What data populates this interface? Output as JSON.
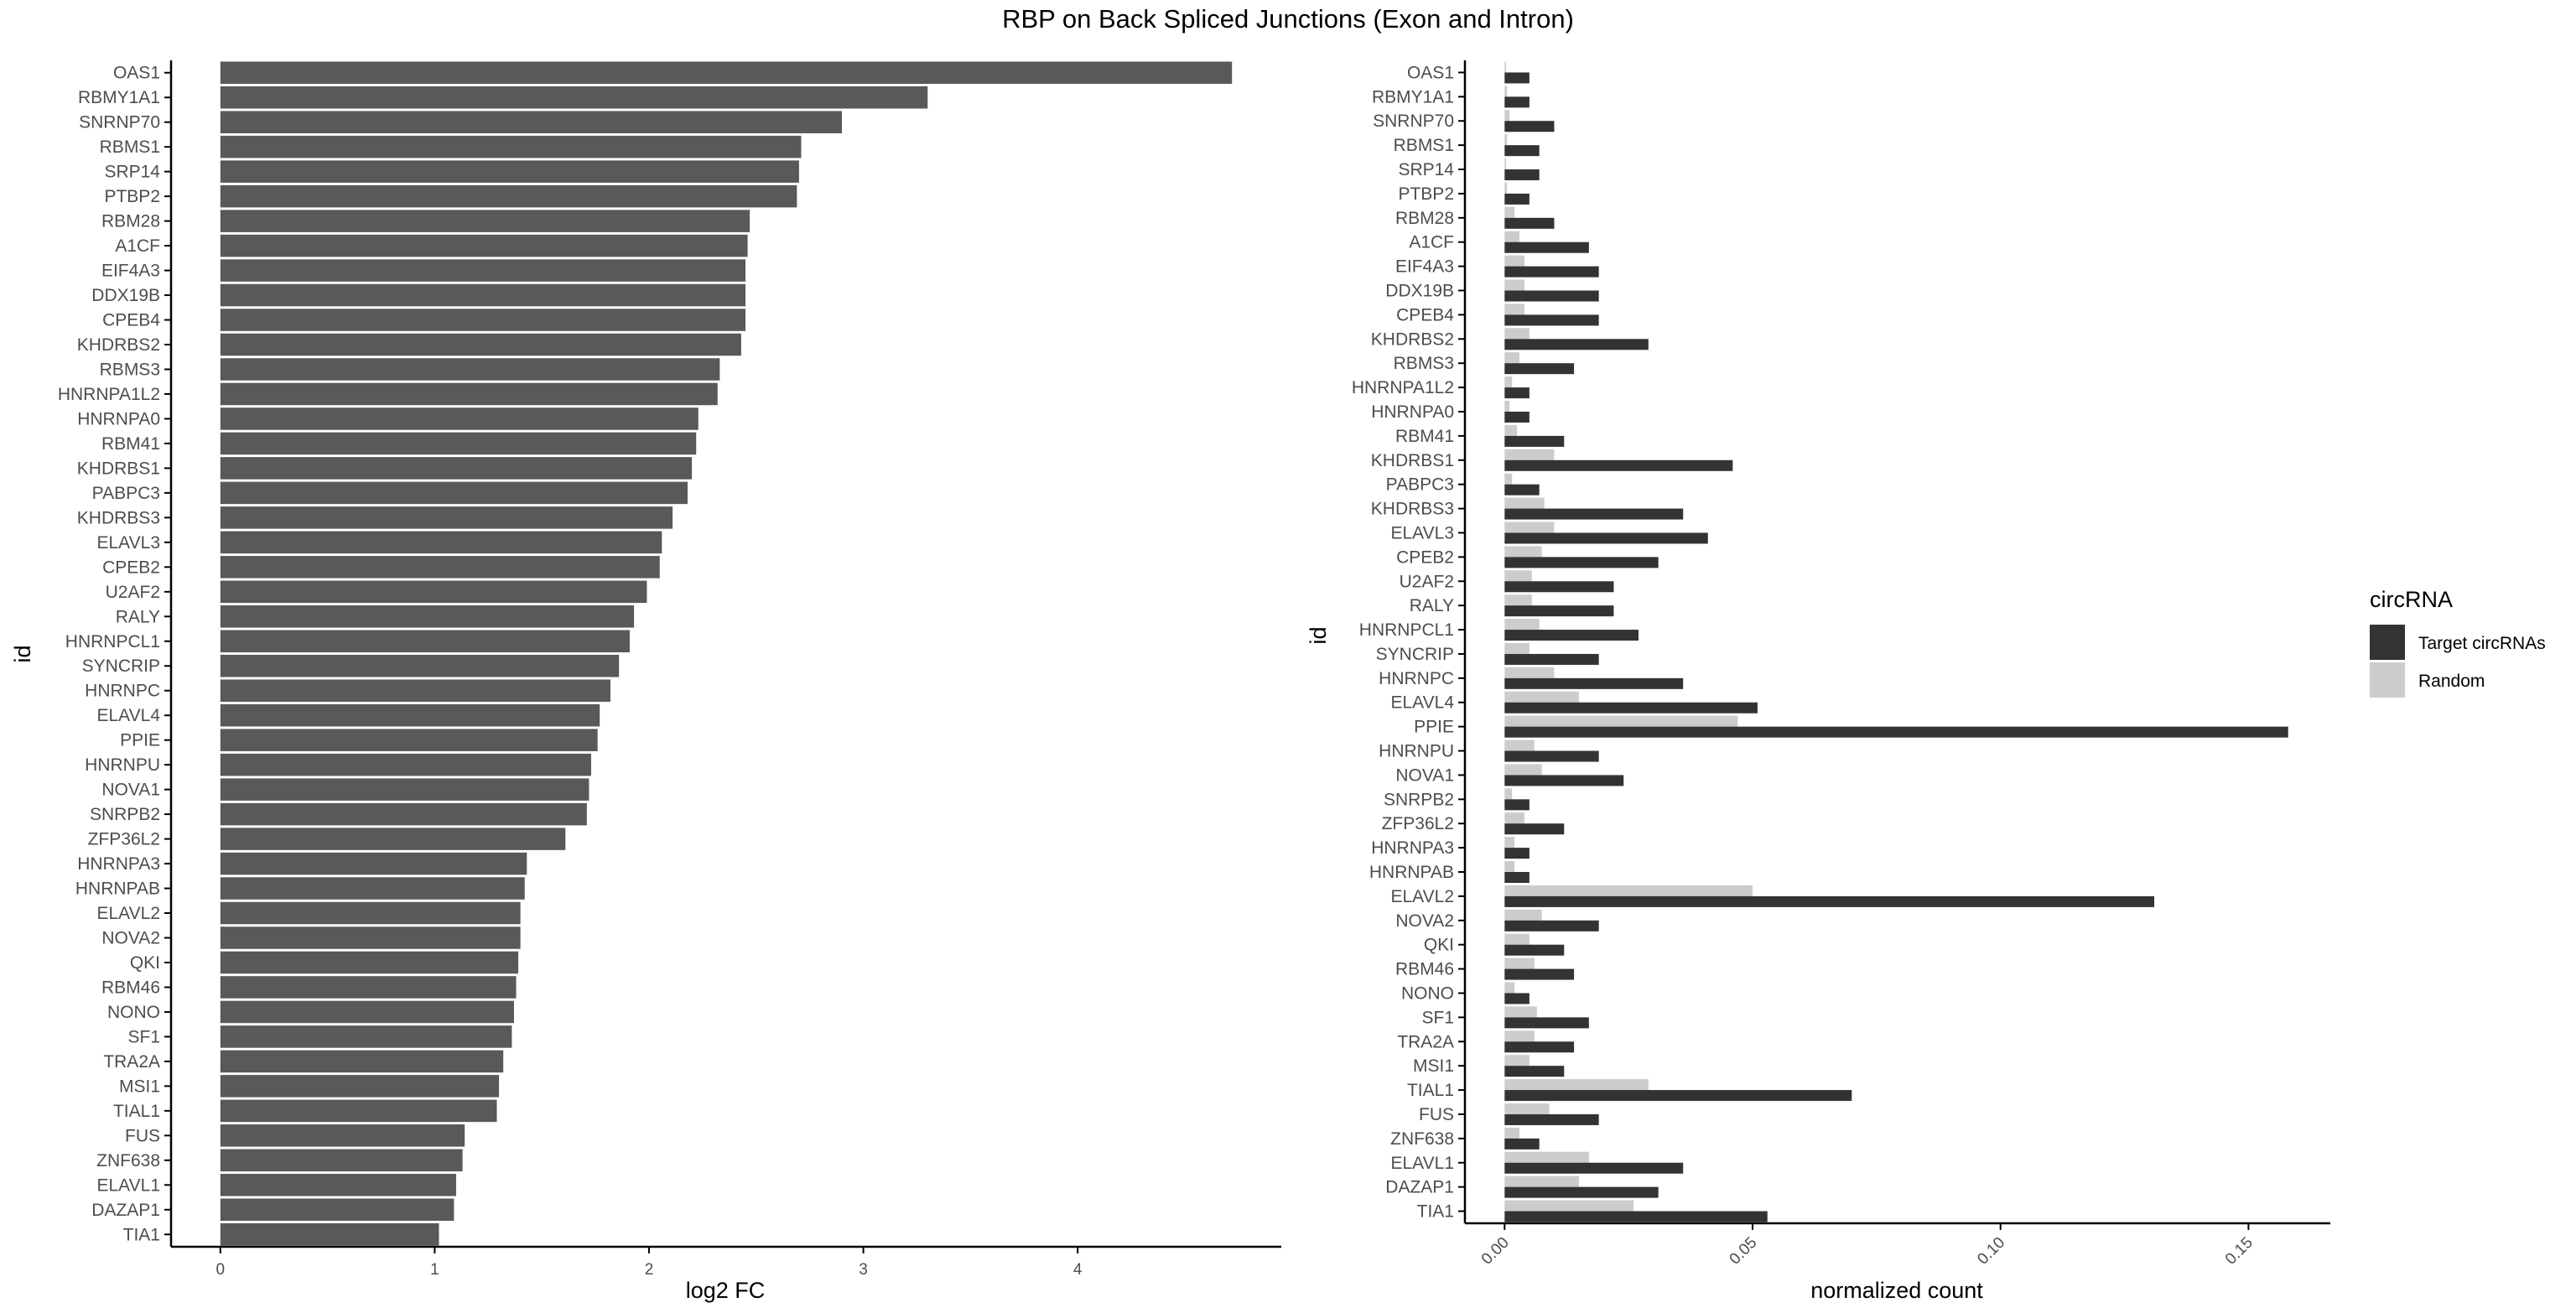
{
  "title": "RBP on Back Spliced Junctions (Exon and Intron)",
  "colors": {
    "bar_left": "#595959",
    "target": "#333333",
    "random": "#cccccc",
    "axis": "#000000",
    "text": "#4d4d4d"
  },
  "chart_data": [
    {
      "type": "bar",
      "orientation": "horizontal",
      "xlabel": "log2 FC",
      "ylabel": "id",
      "xlim": [
        -0.23,
        4.95
      ],
      "xticks": [
        "0",
        "1",
        "2",
        "3",
        "4"
      ],
      "grid": false,
      "categories": [
        "OAS1",
        "RBMY1A1",
        "SNRNP70",
        "RBMS1",
        "SRP14",
        "PTBP2",
        "RBM28",
        "A1CF",
        "EIF4A3",
        "DDX19B",
        "CPEB4",
        "KHDRBS2",
        "RBMS3",
        "HNRNPA1L2",
        "HNRNPA0",
        "RBM41",
        "KHDRBS1",
        "PABPC3",
        "KHDRBS3",
        "ELAVL3",
        "CPEB2",
        "U2AF2",
        "RALY",
        "HNRNPCL1",
        "SYNCRIP",
        "HNRNPC",
        "ELAVL4",
        "PPIE",
        "HNRNPU",
        "NOVA1",
        "SNRPB2",
        "ZFP36L2",
        "HNRNPA3",
        "HNRNPAB",
        "ELAVL2",
        "NOVA2",
        "QKI",
        "RBM46",
        "NONO",
        "SF1",
        "TRA2A",
        "MSI1",
        "TIAL1",
        "FUS",
        "ZNF638",
        "ELAVL1",
        "DAZAP1",
        "TIA1"
      ],
      "values": [
        4.72,
        3.3,
        2.9,
        2.71,
        2.7,
        2.69,
        2.47,
        2.46,
        2.45,
        2.45,
        2.45,
        2.43,
        2.33,
        2.32,
        2.23,
        2.22,
        2.2,
        2.18,
        2.11,
        2.06,
        2.05,
        1.99,
        1.93,
        1.91,
        1.86,
        1.82,
        1.77,
        1.76,
        1.73,
        1.72,
        1.71,
        1.61,
        1.43,
        1.42,
        1.4,
        1.4,
        1.39,
        1.38,
        1.37,
        1.36,
        1.32,
        1.3,
        1.29,
        1.14,
        1.13,
        1.1,
        1.09,
        1.02
      ]
    },
    {
      "type": "bar",
      "orientation": "horizontal",
      "xlabel": "normalized count",
      "ylabel": "id",
      "xlim": [
        -0.008,
        0.1665
      ],
      "xticks": [
        "0.00",
        "0.05",
        "0.10",
        "0.15"
      ],
      "grid": false,
      "legend": {
        "title": "circRNA",
        "position": "right"
      },
      "categories": [
        "OAS1",
        "RBMY1A1",
        "SNRNP70",
        "RBMS1",
        "SRP14",
        "PTBP2",
        "RBM28",
        "A1CF",
        "EIF4A3",
        "DDX19B",
        "CPEB4",
        "KHDRBS2",
        "RBMS3",
        "HNRNPA1L2",
        "HNRNPA0",
        "RBM41",
        "KHDRBS1",
        "PABPC3",
        "KHDRBS3",
        "ELAVL3",
        "CPEB2",
        "U2AF2",
        "RALY",
        "HNRNPCL1",
        "SYNCRIP",
        "HNRNPC",
        "ELAVL4",
        "PPIE",
        "HNRNPU",
        "NOVA1",
        "SNRPB2",
        "ZFP36L2",
        "HNRNPA3",
        "HNRNPAB",
        "ELAVL2",
        "NOVA2",
        "QKI",
        "RBM46",
        "NONO",
        "SF1",
        "TRA2A",
        "MSI1",
        "TIAL1",
        "FUS",
        "ZNF638",
        "ELAVL1",
        "DAZAP1",
        "TIA1"
      ],
      "series": [
        {
          "name": "Target circRNAs",
          "values": [
            0.005,
            0.005,
            0.01,
            0.007,
            0.007,
            0.005,
            0.01,
            0.017,
            0.019,
            0.019,
            0.019,
            0.029,
            0.014,
            0.005,
            0.005,
            0.012,
            0.046,
            0.007,
            0.036,
            0.041,
            0.031,
            0.022,
            0.022,
            0.027,
            0.019,
            0.036,
            0.051,
            0.158,
            0.019,
            0.024,
            0.005,
            0.012,
            0.005,
            0.005,
            0.131,
            0.019,
            0.012,
            0.014,
            0.005,
            0.017,
            0.014,
            0.012,
            0.07,
            0.019,
            0.007,
            0.036,
            0.031,
            0.053
          ]
        },
        {
          "name": "Random",
          "values": [
            0.0003,
            0.0005,
            0.001,
            0.0005,
            0.0003,
            0.0005,
            0.002,
            0.003,
            0.004,
            0.004,
            0.004,
            0.005,
            0.003,
            0.0015,
            0.001,
            0.0025,
            0.01,
            0.0015,
            0.008,
            0.01,
            0.0075,
            0.0055,
            0.0055,
            0.007,
            0.005,
            0.01,
            0.015,
            0.047,
            0.006,
            0.0075,
            0.0015,
            0.004,
            0.002,
            0.002,
            0.05,
            0.0075,
            0.005,
            0.006,
            0.002,
            0.0065,
            0.006,
            0.005,
            0.029,
            0.009,
            0.003,
            0.017,
            0.015,
            0.026
          ]
        }
      ]
    }
  ]
}
